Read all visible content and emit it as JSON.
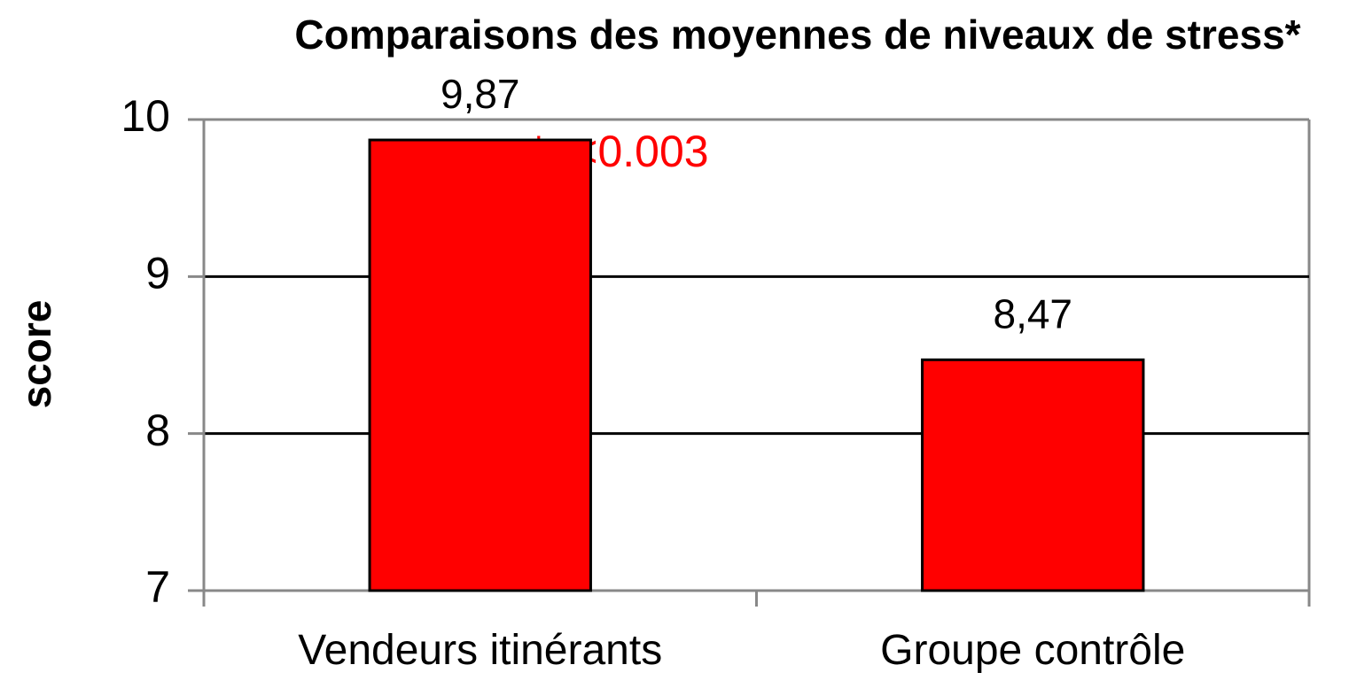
{
  "chart_data": {
    "type": "bar",
    "title": "Comparaisons des moyennes de niveaux de stress*",
    "annotation": "*p<0.003",
    "y_label": "score",
    "categories": [
      "Vendeurs itinérants",
      "Groupe contrôle"
    ],
    "values": [
      9.87,
      8.47
    ],
    "value_labels": [
      "9,87",
      "8,47"
    ],
    "color": "#ff0000",
    "annotation_color": "#ff0000",
    "ylim": [
      7,
      10
    ],
    "yticks": [
      7,
      8,
      9,
      10
    ],
    "grid": true
  }
}
